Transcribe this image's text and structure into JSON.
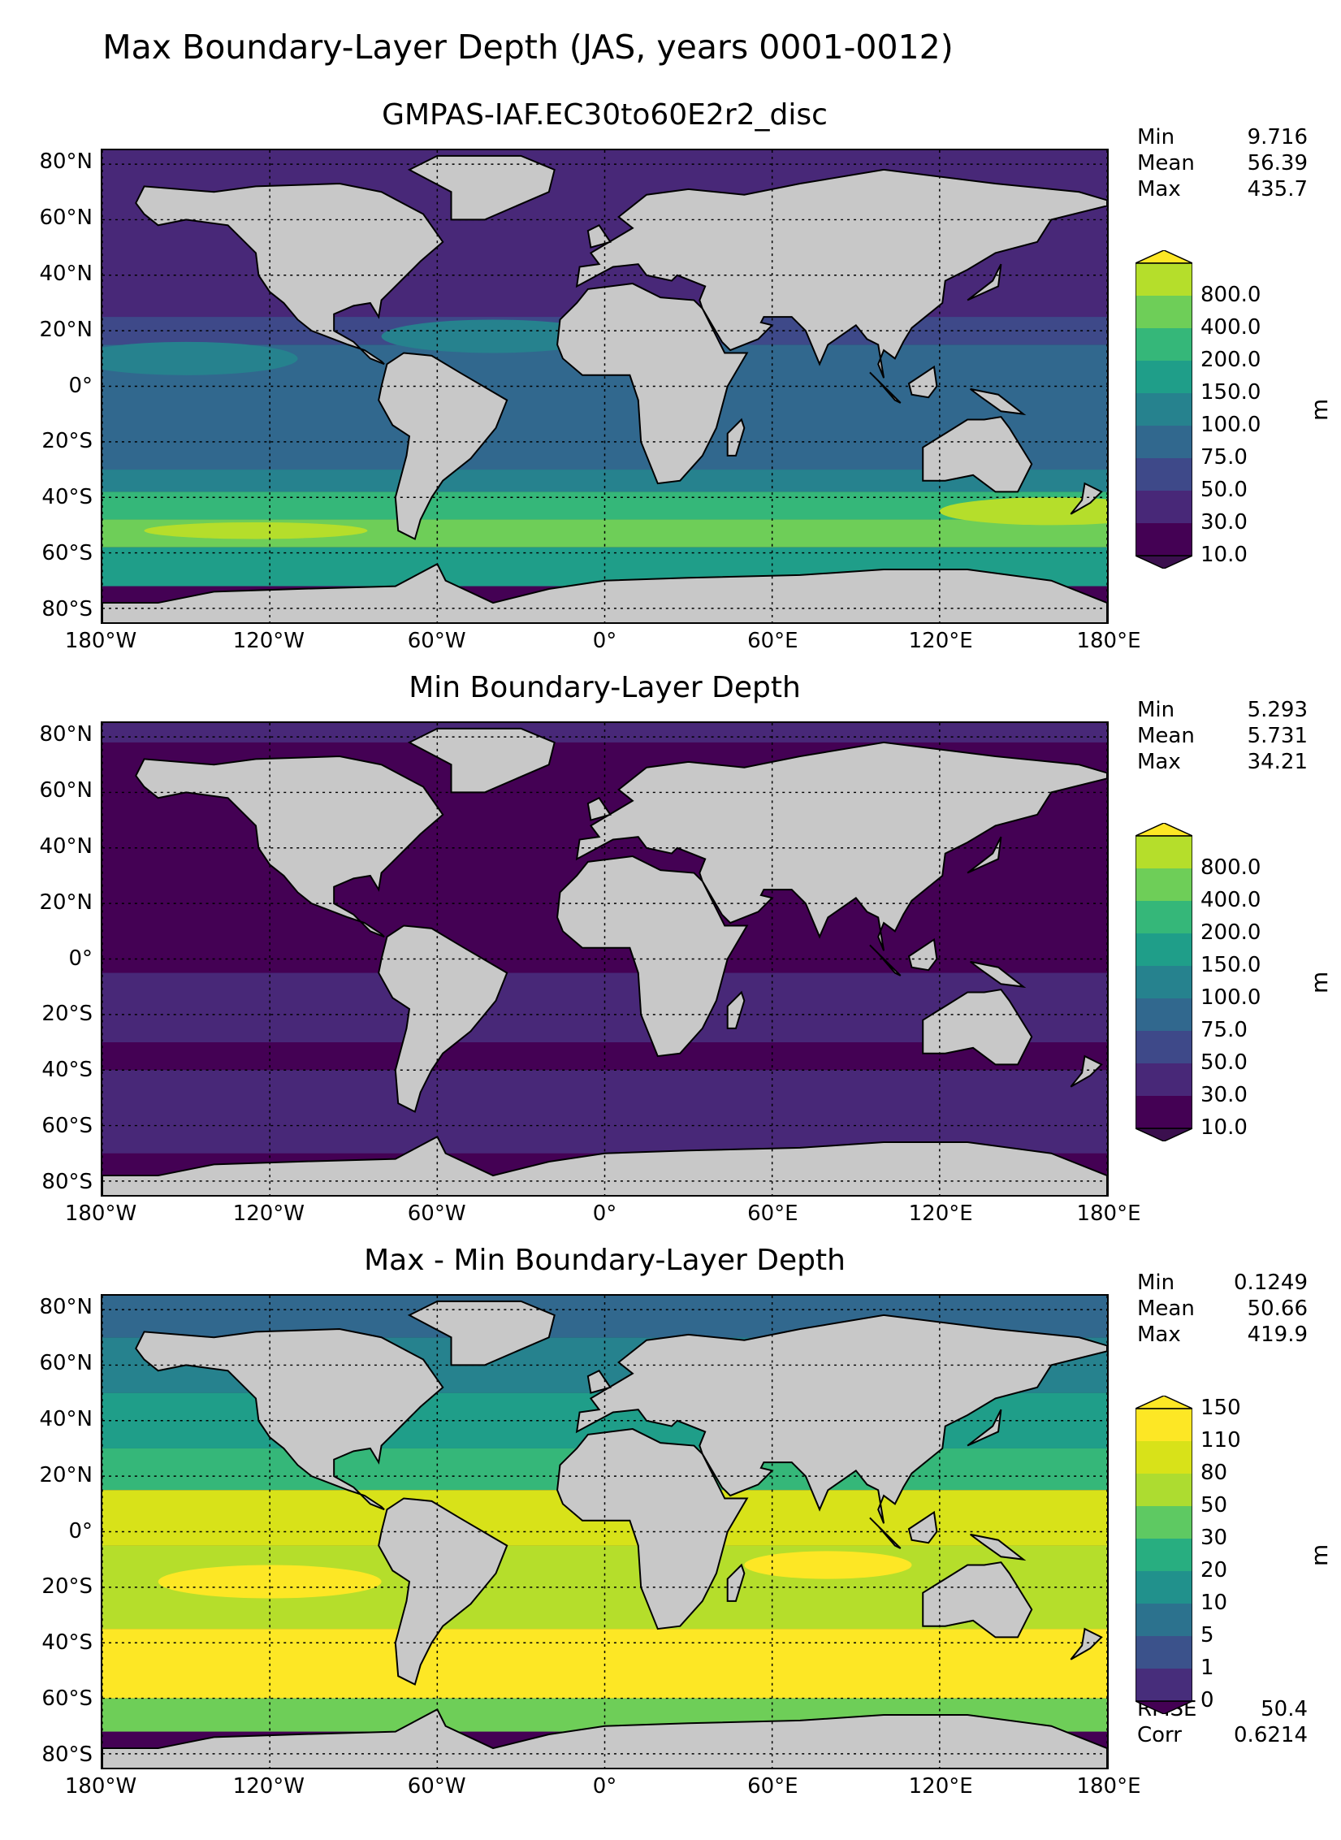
{
  "figure": {
    "suptitle": "Max Boundary-Layer Depth (JAS, years 0001-0012)"
  },
  "panels": [
    {
      "title": "GMPAS-IAF.EC30to60E2r2_disc",
      "stats": [
        [
          "Min",
          "9.716"
        ],
        [
          "Mean",
          "56.39"
        ],
        [
          "Max",
          "435.7"
        ]
      ],
      "colorbar": {
        "labels": [
          "10.0",
          "30.0",
          "50.0",
          "75.0",
          "100.0",
          "150.0",
          "200.0",
          "400.0",
          "800.0"
        ],
        "colors": [
          "#440154",
          "#482878",
          "#3e4989",
          "#31688e",
          "#26828e",
          "#1f9e89",
          "#35b779",
          "#6ece58",
          "#b5de2b"
        ],
        "extend_min_color": "#3b0f4e",
        "extend_max_color": "#fde725",
        "unit": "m"
      }
    },
    {
      "title": "Min Boundary-Layer Depth",
      "stats": [
        [
          "Min",
          "5.293"
        ],
        [
          "Mean",
          "5.731"
        ],
        [
          "Max",
          "34.21"
        ]
      ],
      "colorbar": {
        "labels": [
          "10.0",
          "30.0",
          "50.0",
          "75.0",
          "100.0",
          "150.0",
          "200.0",
          "400.0",
          "800.0"
        ],
        "colors": [
          "#440154",
          "#482878",
          "#3e4989",
          "#31688e",
          "#26828e",
          "#1f9e89",
          "#35b779",
          "#6ece58",
          "#b5de2b"
        ],
        "extend_min_color": "#3b0f4e",
        "extend_max_color": "#fde725",
        "unit": "m"
      }
    },
    {
      "title": "Max - Min Boundary-Layer Depth",
      "stats": [
        [
          "Min",
          "0.1249"
        ],
        [
          "Mean",
          "50.66"
        ],
        [
          "Max",
          "419.9"
        ]
      ],
      "extra_stats": [
        [
          "RMSE",
          "50.4"
        ],
        [
          "Corr",
          "0.6214"
        ]
      ],
      "colorbar": {
        "labels": [
          "0",
          "1",
          "5",
          "10",
          "20",
          "30",
          "50",
          "80",
          "110",
          "150"
        ],
        "colors": [
          "#472d7b",
          "#3b528b",
          "#2c728e",
          "#21918c",
          "#28ae80",
          "#5ec962",
          "#addc30",
          "#d8e219",
          "#fde725"
        ],
        "extend_min_color": "#440154",
        "extend_max_color": "#fde725",
        "unit": "m"
      }
    }
  ],
  "map": {
    "lon_ticks": [
      "180°W",
      "120°W",
      "60°W",
      "0°",
      "60°E",
      "120°E",
      "180°E"
    ],
    "lat_ticks": [
      "80°N",
      "60°N",
      "40°N",
      "20°N",
      "0°",
      "20°S",
      "40°S",
      "60°S",
      "80°S"
    ],
    "lat_tick_values": [
      80,
      60,
      40,
      20,
      0,
      -20,
      -40,
      -60,
      -80
    ],
    "lon_tick_values": [
      -180,
      -120,
      -60,
      0,
      60,
      120,
      180
    ],
    "lat_range": [
      -85,
      85
    ],
    "land_color": "#c8c8c8"
  }
}
